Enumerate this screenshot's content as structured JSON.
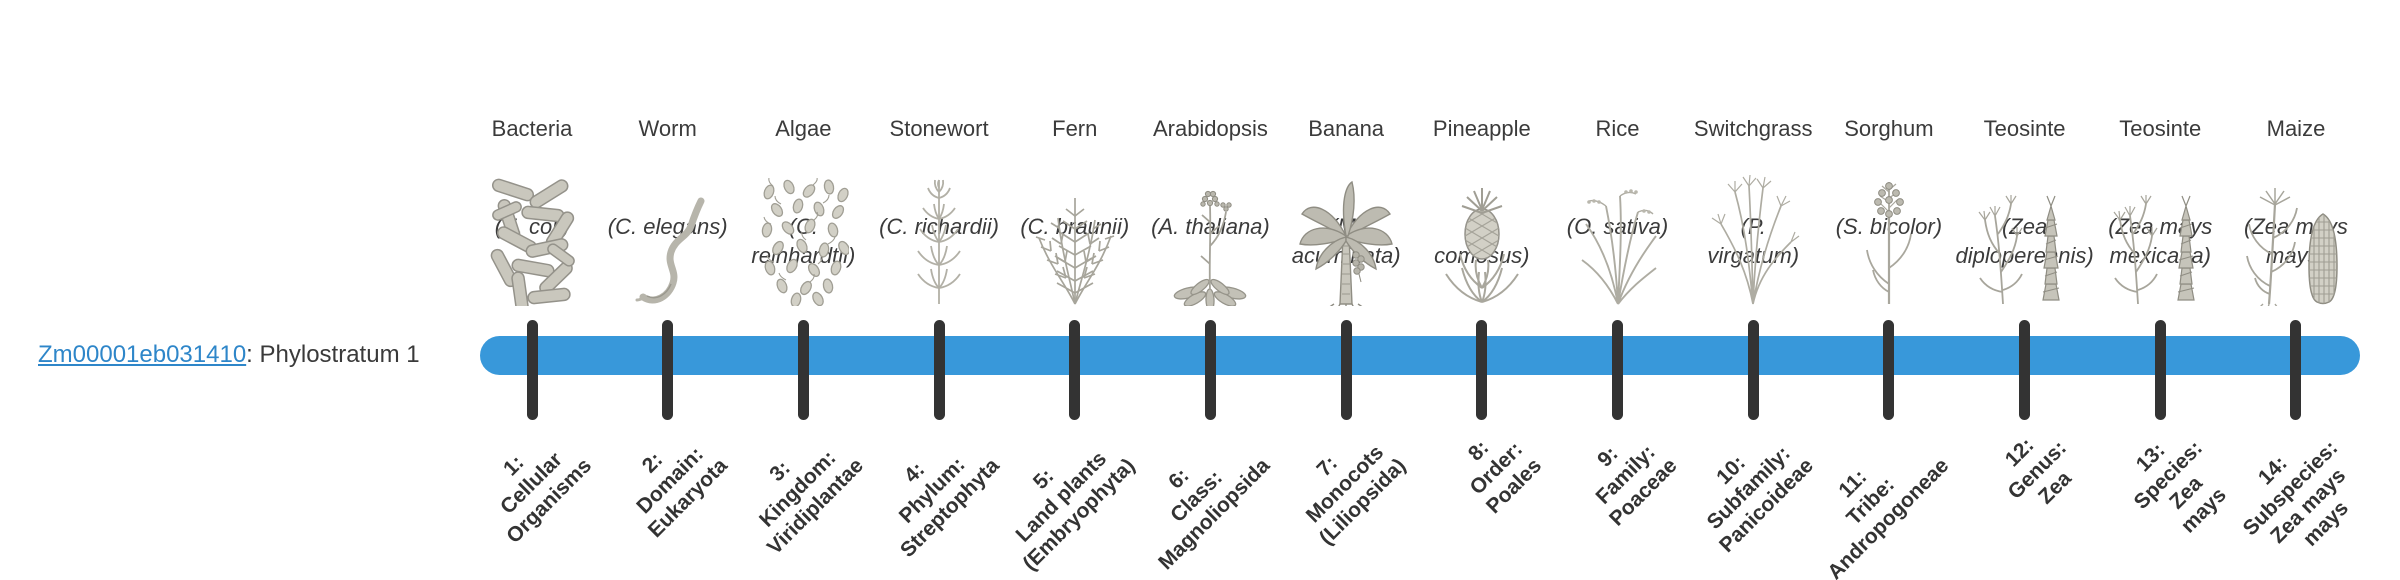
{
  "gene": {
    "id": "Zm00001eb031410",
    "suffix": ": Phylostratum 1"
  },
  "bar": {
    "color": "#3898da",
    "tick_color": "#333333",
    "phylostratum_count": 14
  },
  "columns": [
    {
      "name": "Bacteria",
      "species": "(E. coli)",
      "image": "bacteria-engraving",
      "stratum": "1:\nCellular\nOrganisms"
    },
    {
      "name": "Worm",
      "species": "(C. elegans)",
      "image": "worm-engraving",
      "stratum": "2:\nDomain:\nEukaryota"
    },
    {
      "name": "Algae",
      "species": "(C.\nreinhardtii)",
      "image": "algae-engraving",
      "stratum": "3:\nKingdom:\nViridiplantae"
    },
    {
      "name": "Stonewort",
      "species": "(C. richardii)",
      "image": "stonewort-engraving",
      "stratum": "4:\nPhylum:\nStreptophyta"
    },
    {
      "name": "Fern",
      "species": "(C. braunii)",
      "image": "fern-engraving",
      "stratum": "5:\nLand plants\n(Embryophyta)"
    },
    {
      "name": "Arabidopsis",
      "species": "(A. thaliana)",
      "image": "arabidopsis-engraving",
      "stratum": "6:\nClass:\nMagnoliopsida"
    },
    {
      "name": "Banana",
      "species": "(M.\nacuminata)",
      "image": "banana-engraving",
      "stratum": "7:\nMonocots\n(Liliopsida)"
    },
    {
      "name": "Pineapple",
      "species": "(A.\ncomosus)",
      "image": "pineapple-engraving",
      "stratum": "8:\nOrder:\nPoales"
    },
    {
      "name": "Rice",
      "species": "(O. sativa)",
      "image": "rice-engraving",
      "stratum": "9:\nFamily:\nPoaceae"
    },
    {
      "name": "Switchgrass",
      "species": "(P.\nvirgatum)",
      "image": "switchgrass-engraving",
      "stratum": "10:\nSubfamily:\nPanicoideae"
    },
    {
      "name": "Sorghum",
      "species": "(S. bicolor)",
      "image": "sorghum-engraving",
      "stratum": "11:\nTribe:\nAndropogoneae"
    },
    {
      "name": "Teosinte",
      "species": "(Zea\ndiploperennis)",
      "image": "teosinte-engraving",
      "stratum": "12:\nGenus:\nZea"
    },
    {
      "name": "Teosinte",
      "species": "(Zea mays\nmexicana)",
      "image": "teosinte-engraving",
      "stratum": "13:\nSpecies:\nZea\nmays"
    },
    {
      "name": "Maize",
      "species": "(Zea mays\nmays)",
      "image": "maize-engraving",
      "stratum": "14:\nSubspecies:\nZea mays\nmays"
    }
  ]
}
